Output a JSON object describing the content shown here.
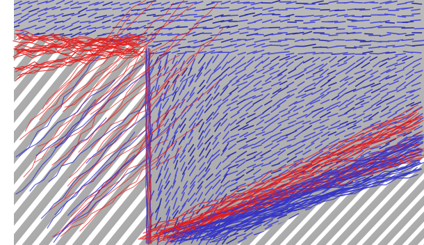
{
  "colors": {
    "background": "#ffffff",
    "plate": "#b7b7b7",
    "plate_shadow": "#8f8f8f",
    "plate_edge": "#e6e6e6",
    "rod_light": "#d8d8d8",
    "rod_mid": "#a9a9a9",
    "rod_dark": "#7b7b7b",
    "needles": "#4a4ad6",
    "needles_dark": "#2a2aa8",
    "trails_red": "#e31e1e",
    "trails_blue": "#3434c8"
  }
}
